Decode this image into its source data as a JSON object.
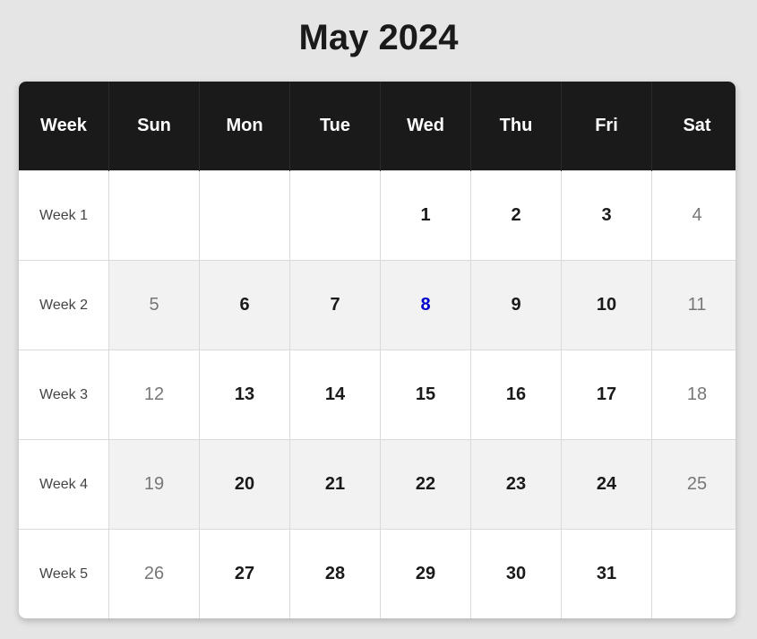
{
  "title": "May 2024",
  "colors": {
    "header_bg": "#1a1a1a",
    "today": "#0000cc",
    "weekend": "#777777",
    "weekday": "#1a1a1a",
    "page_bg": "#e5e5e5"
  },
  "header": [
    "Week",
    "Sun",
    "Mon",
    "Tue",
    "Wed",
    "Thu",
    "Fri",
    "Sat"
  ],
  "weeks": [
    {
      "label": "Week 1",
      "days": [
        "",
        "",
        "",
        "1",
        "2",
        "3",
        "4"
      ]
    },
    {
      "label": "Week 2",
      "days": [
        "5",
        "6",
        "7",
        "8",
        "9",
        "10",
        "11"
      ]
    },
    {
      "label": "Week 3",
      "days": [
        "12",
        "13",
        "14",
        "15",
        "16",
        "17",
        "18"
      ]
    },
    {
      "label": "Week 4",
      "days": [
        "19",
        "20",
        "21",
        "22",
        "23",
        "24",
        "25"
      ]
    },
    {
      "label": "Week 5",
      "days": [
        "26",
        "27",
        "28",
        "29",
        "30",
        "31",
        ""
      ]
    }
  ],
  "highlighted_day": "8"
}
